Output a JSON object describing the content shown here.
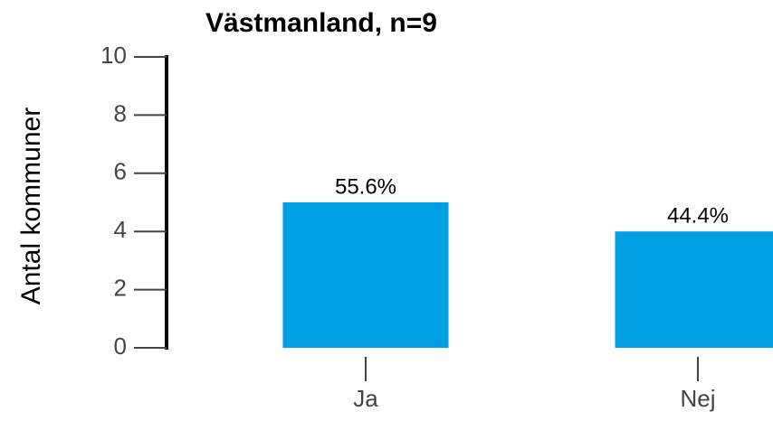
{
  "chart_data": {
    "type": "bar",
    "title": "Västmanland, n=9",
    "y_label": "Antal kommuner",
    "categories": [
      "Ja",
      "Nej"
    ],
    "values": [
      5,
      4
    ],
    "value_labels": [
      "55.6%",
      "44.4%"
    ],
    "color": "#009fe3",
    "ylim": [
      0,
      10
    ],
    "yticks": [
      0,
      2,
      4,
      6,
      8,
      10
    ]
  }
}
